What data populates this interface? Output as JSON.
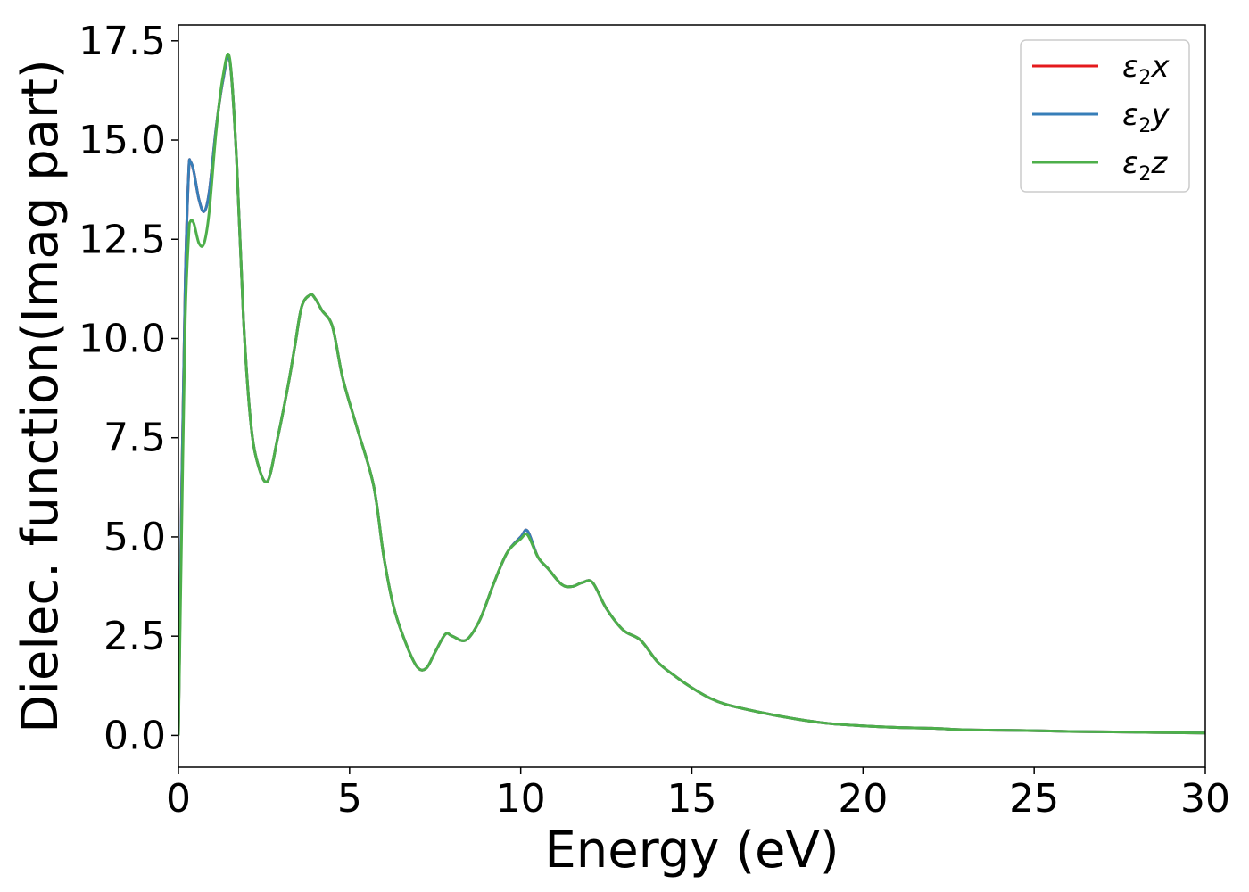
{
  "chart_data": {
    "type": "line",
    "xlabel": "Energy (eV)",
    "ylabel": "Dielec. function(Imag part)",
    "xlim": [
      0,
      30
    ],
    "ylim": [
      -0.8,
      17.9
    ],
    "xticks": [
      0,
      5,
      10,
      15,
      20,
      25,
      30
    ],
    "xtick_labels": [
      "0",
      "5",
      "10",
      "15",
      "20",
      "25",
      "30"
    ],
    "yticks": [
      0.0,
      2.5,
      5.0,
      7.5,
      10.0,
      12.5,
      15.0,
      17.5
    ],
    "ytick_labels": [
      "0.0",
      "2.5",
      "5.0",
      "7.5",
      "10.0",
      "12.5",
      "15.0",
      "17.5"
    ],
    "grid": false,
    "legend_position": "top-right",
    "series": [
      {
        "name": "ε2x",
        "symbol": "ε",
        "subscript": "2",
        "suffix": "x",
        "color": "#e41a1c",
        "x": [
          0.0,
          0.1,
          0.2,
          0.3,
          0.35,
          0.45,
          0.6,
          0.75,
          0.9,
          1.1,
          1.3,
          1.5,
          1.7,
          1.9,
          2.1,
          2.3,
          2.6,
          2.9,
          3.2,
          3.4,
          3.6,
          3.85,
          4.0,
          4.2,
          4.5,
          4.8,
          5.2,
          5.7,
          6.0,
          6.3,
          6.7,
          7.0,
          7.25,
          7.5,
          7.8,
          8.0,
          8.4,
          8.8,
          9.2,
          9.6,
          10.0,
          10.2,
          10.5,
          10.8,
          11.2,
          11.5,
          11.8,
          12.1,
          12.5,
          13.0,
          13.5,
          14.0,
          14.5,
          15.0,
          15.5,
          16.0,
          17.0,
          18.0,
          19.0,
          20.0,
          21.0,
          22.0,
          23.0,
          24.0,
          25.0,
          26.0,
          27.0,
          28.0,
          29.0,
          30.0
        ],
        "values": [
          0.0,
          6.5,
          11.5,
          14.2,
          14.45,
          14.2,
          13.5,
          13.2,
          13.7,
          15.3,
          16.5,
          17.0,
          14.5,
          10.5,
          8.0,
          6.9,
          6.4,
          7.5,
          8.8,
          9.8,
          10.8,
          11.1,
          11.0,
          10.7,
          10.3,
          9.0,
          7.8,
          6.3,
          4.5,
          3.2,
          2.2,
          1.7,
          1.7,
          2.1,
          2.55,
          2.5,
          2.4,
          2.9,
          3.8,
          4.6,
          5.0,
          5.15,
          4.5,
          4.2,
          3.8,
          3.75,
          3.85,
          3.85,
          3.2,
          2.65,
          2.4,
          1.85,
          1.5,
          1.2,
          0.95,
          0.78,
          0.58,
          0.42,
          0.3,
          0.24,
          0.2,
          0.18,
          0.14,
          0.13,
          0.12,
          0.1,
          0.09,
          0.08,
          0.07,
          0.06
        ]
      },
      {
        "name": "ε2y",
        "symbol": "ε",
        "subscript": "2",
        "suffix": "y",
        "color": "#377eb8",
        "x": [
          0.0,
          0.1,
          0.2,
          0.3,
          0.35,
          0.45,
          0.6,
          0.75,
          0.9,
          1.1,
          1.3,
          1.5,
          1.7,
          1.9,
          2.1,
          2.3,
          2.6,
          2.9,
          3.2,
          3.4,
          3.6,
          3.85,
          4.0,
          4.2,
          4.5,
          4.8,
          5.2,
          5.7,
          6.0,
          6.3,
          6.7,
          7.0,
          7.25,
          7.5,
          7.8,
          8.0,
          8.4,
          8.8,
          9.2,
          9.6,
          10.0,
          10.2,
          10.5,
          10.8,
          11.2,
          11.5,
          11.8,
          12.1,
          12.5,
          13.0,
          13.5,
          14.0,
          14.5,
          15.0,
          15.5,
          16.0,
          17.0,
          18.0,
          19.0,
          20.0,
          21.0,
          22.0,
          23.0,
          24.0,
          25.0,
          26.0,
          27.0,
          28.0,
          29.0,
          30.0
        ],
        "values": [
          0.0,
          6.5,
          11.5,
          14.2,
          14.45,
          14.2,
          13.5,
          13.2,
          13.7,
          15.3,
          16.5,
          17.0,
          14.5,
          10.5,
          8.0,
          6.9,
          6.4,
          7.5,
          8.8,
          9.8,
          10.8,
          11.1,
          11.0,
          10.7,
          10.3,
          9.0,
          7.8,
          6.3,
          4.5,
          3.2,
          2.2,
          1.7,
          1.7,
          2.1,
          2.55,
          2.5,
          2.4,
          2.9,
          3.8,
          4.6,
          5.0,
          5.15,
          4.5,
          4.2,
          3.8,
          3.75,
          3.85,
          3.85,
          3.2,
          2.65,
          2.4,
          1.85,
          1.5,
          1.2,
          0.95,
          0.78,
          0.58,
          0.42,
          0.3,
          0.24,
          0.2,
          0.18,
          0.14,
          0.13,
          0.12,
          0.1,
          0.09,
          0.08,
          0.07,
          0.06
        ]
      },
      {
        "name": "ε2z",
        "symbol": "ε",
        "subscript": "2",
        "suffix": "z",
        "color": "#4daf4a",
        "x": [
          0.0,
          0.1,
          0.2,
          0.3,
          0.35,
          0.45,
          0.6,
          0.75,
          0.9,
          1.1,
          1.3,
          1.5,
          1.7,
          1.9,
          2.1,
          2.3,
          2.6,
          2.9,
          3.2,
          3.4,
          3.6,
          3.85,
          4.0,
          4.2,
          4.5,
          4.8,
          5.2,
          5.7,
          6.0,
          6.3,
          6.7,
          7.0,
          7.25,
          7.5,
          7.8,
          8.0,
          8.4,
          8.8,
          9.2,
          9.6,
          10.0,
          10.2,
          10.5,
          10.8,
          11.2,
          11.5,
          11.8,
          12.1,
          12.5,
          13.0,
          13.5,
          14.0,
          14.5,
          15.0,
          15.5,
          16.0,
          17.0,
          18.0,
          19.0,
          20.0,
          21.0,
          22.0,
          23.0,
          24.0,
          25.0,
          26.0,
          27.0,
          28.0,
          29.0,
          30.0
        ],
        "values": [
          0.0,
          5.5,
          10.5,
          12.6,
          12.95,
          12.9,
          12.4,
          12.4,
          13.2,
          15.2,
          16.6,
          17.05,
          14.5,
          10.5,
          8.0,
          6.9,
          6.4,
          7.5,
          8.8,
          9.8,
          10.8,
          11.1,
          11.0,
          10.7,
          10.3,
          9.0,
          7.8,
          6.3,
          4.5,
          3.2,
          2.2,
          1.7,
          1.7,
          2.1,
          2.55,
          2.5,
          2.4,
          2.9,
          3.8,
          4.6,
          4.95,
          5.05,
          4.5,
          4.2,
          3.8,
          3.75,
          3.85,
          3.85,
          3.2,
          2.65,
          2.4,
          1.85,
          1.5,
          1.2,
          0.95,
          0.78,
          0.58,
          0.42,
          0.3,
          0.24,
          0.2,
          0.18,
          0.14,
          0.13,
          0.12,
          0.1,
          0.09,
          0.08,
          0.07,
          0.06
        ]
      }
    ]
  }
}
